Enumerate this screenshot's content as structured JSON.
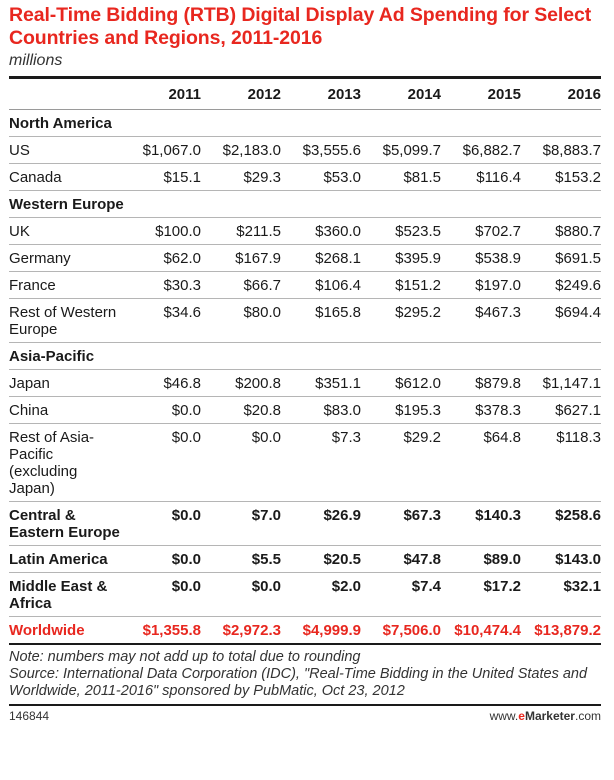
{
  "chart_data": {
    "type": "table",
    "title": "Real-Time Bidding (RTB) Digital Display Ad Spending for Select Countries and Regions, 2011-2016",
    "subtitle": "millions",
    "columns": [
      "2011",
      "2012",
      "2013",
      "2014",
      "2015",
      "2016"
    ],
    "rows": [
      {
        "label": "North America",
        "kind": "group",
        "values": []
      },
      {
        "label": "US",
        "kind": "row",
        "values": [
          "$1,067.0",
          "$2,183.0",
          "$3,555.6",
          "$5,099.7",
          "$6,882.7",
          "$8,883.7"
        ]
      },
      {
        "label": "Canada",
        "kind": "row",
        "values": [
          "$15.1",
          "$29.3",
          "$53.0",
          "$81.5",
          "$116.4",
          "$153.2"
        ]
      },
      {
        "label": "Western Europe",
        "kind": "group",
        "values": []
      },
      {
        "label": "UK",
        "kind": "row",
        "values": [
          "$100.0",
          "$211.5",
          "$360.0",
          "$523.5",
          "$702.7",
          "$880.7"
        ]
      },
      {
        "label": "Germany",
        "kind": "row",
        "values": [
          "$62.0",
          "$167.9",
          "$268.1",
          "$395.9",
          "$538.9",
          "$691.5"
        ]
      },
      {
        "label": "France",
        "kind": "row",
        "values": [
          "$30.3",
          "$66.7",
          "$106.4",
          "$151.2",
          "$197.0",
          "$249.6"
        ]
      },
      {
        "label": "Rest of Western Europe",
        "kind": "row",
        "values": [
          "$34.6",
          "$80.0",
          "$165.8",
          "$295.2",
          "$467.3",
          "$694.4"
        ]
      },
      {
        "label": "Asia-Pacific",
        "kind": "group",
        "values": []
      },
      {
        "label": "Japan",
        "kind": "row",
        "values": [
          "$46.8",
          "$200.8",
          "$351.1",
          "$612.0",
          "$879.8",
          "$1,147.1"
        ]
      },
      {
        "label": "China",
        "kind": "row",
        "values": [
          "$0.0",
          "$20.8",
          "$83.0",
          "$195.3",
          "$378.3",
          "$627.1"
        ]
      },
      {
        "label": "Rest of Asia-Pacific (excluding Japan)",
        "kind": "row",
        "values": [
          "$0.0",
          "$0.0",
          "$7.3",
          "$29.2",
          "$64.8",
          "$118.3"
        ]
      },
      {
        "label": "Central & Eastern Europe",
        "kind": "bold",
        "values": [
          "$0.0",
          "$7.0",
          "$26.9",
          "$67.3",
          "$140.3",
          "$258.6"
        ]
      },
      {
        "label": "Latin America",
        "kind": "bold",
        "values": [
          "$0.0",
          "$5.5",
          "$20.5",
          "$47.8",
          "$89.0",
          "$143.0"
        ]
      },
      {
        "label": "Middle East & Africa",
        "kind": "bold",
        "values": [
          "$0.0",
          "$0.0",
          "$2.0",
          "$7.4",
          "$17.2",
          "$32.1"
        ]
      },
      {
        "label": "Worldwide",
        "kind": "world",
        "values": [
          "$1,355.8",
          "$2,972.3",
          "$4,999.9",
          "$7,506.0",
          "$10,474.4",
          "$13,879.2"
        ]
      }
    ]
  },
  "notes": {
    "line1": "Note: numbers may not add up to total due to rounding",
    "line2": "Source: International Data Corporation (IDC), \"Real-Time Bidding in the United States and Worldwide, 2011-2016\" sponsored by PubMatic, Oct 23, 2012"
  },
  "footer": {
    "id": "146844",
    "site_prefix": "www.",
    "site_mark": "e",
    "site_name": "Marketer",
    "site_suffix": ".com"
  },
  "colors": {
    "accent": "#e8271f",
    "text": "#1a1a1a"
  }
}
